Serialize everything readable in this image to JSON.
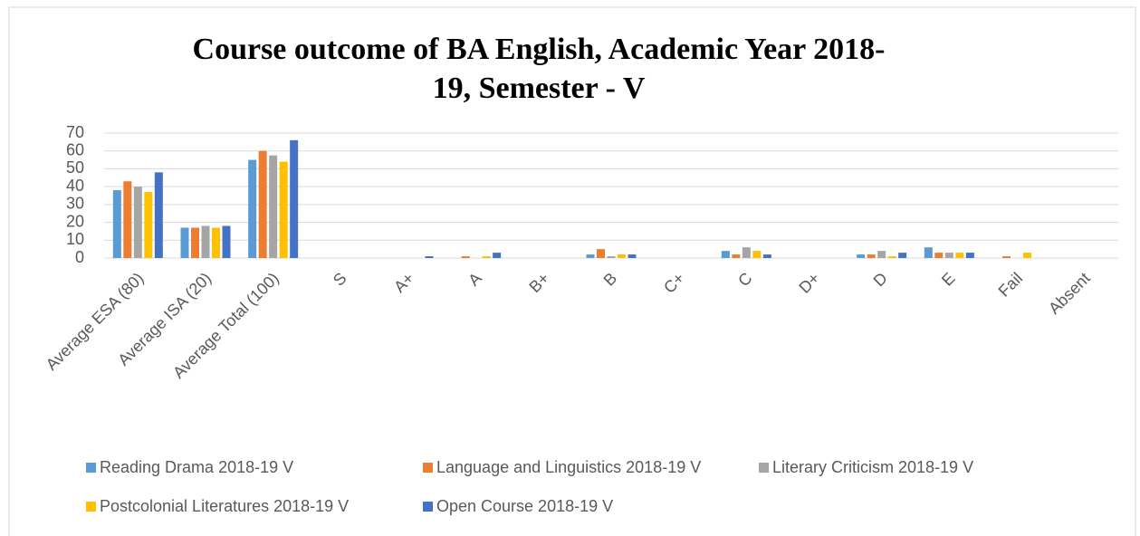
{
  "chart_data": {
    "type": "bar",
    "title": [
      "Course outcome of BA English, Academic Year 2018-",
      "19, Semester - V"
    ],
    "categories": [
      "Average ESA (80)",
      "Average ISA (20)",
      "Average Total (100)",
      "S",
      "A+",
      "A",
      "B+",
      "B",
      "C+",
      "C",
      "D+",
      "D",
      "E",
      "Fail",
      "Absent"
    ],
    "series": [
      {
        "name": "Reading Drama 2018-19 V",
        "color": "#5b9bd5",
        "values": [
          38,
          17,
          55,
          0,
          0,
          0,
          0,
          2,
          0,
          4,
          0,
          2,
          6,
          0,
          0
        ]
      },
      {
        "name": "Language and Linguistics 2018-19 V",
        "color": "#ed7d31",
        "values": [
          43,
          17,
          60,
          0,
          0,
          1,
          0,
          5,
          0,
          2,
          0,
          2,
          3,
          1,
          0
        ]
      },
      {
        "name": "Literary Criticism 2018-19 V",
        "color": "#a5a5a5",
        "values": [
          40,
          18,
          57.5,
          0,
          0,
          0,
          0,
          1,
          0,
          6,
          0,
          4,
          3,
          0,
          0
        ]
      },
      {
        "name": "Postcolonial Literatures 2018-19 V",
        "color": "#ffc000",
        "values": [
          37,
          17,
          54,
          0,
          0,
          1,
          0,
          2,
          0,
          4,
          0,
          1,
          3,
          3,
          0
        ]
      },
      {
        "name": "Open Course 2018-19 V",
        "color": "#4472c4",
        "values": [
          48,
          18,
          66,
          0,
          1,
          3,
          0,
          2,
          0,
          2,
          0,
          3,
          3,
          0,
          0
        ]
      }
    ],
    "ylim": [
      0,
      70
    ],
    "yticks": [
      0,
      10,
      20,
      30,
      40,
      50,
      60,
      70
    ],
    "grid": true,
    "legend": "bottom"
  }
}
